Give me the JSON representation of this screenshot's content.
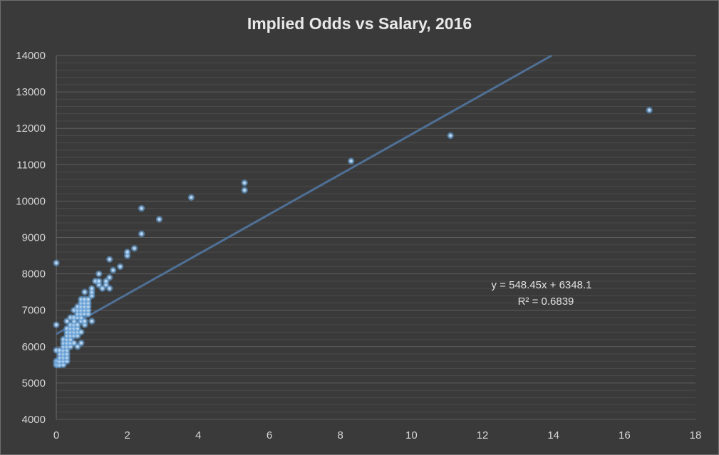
{
  "chart_data": {
    "type": "scatter",
    "title": "Implied Odds vs Salary, 2016",
    "xlabel": "",
    "ylabel": "",
    "xlim": [
      0,
      18
    ],
    "ylim": [
      4000,
      14000
    ],
    "x_ticks": [
      0,
      2,
      4,
      6,
      8,
      10,
      12,
      14,
      16,
      18
    ],
    "y_ticks": [
      4000,
      5000,
      6000,
      7000,
      8000,
      9000,
      10000,
      11000,
      12000,
      13000,
      14000
    ],
    "grid": true,
    "colors": {
      "background": "#3a3a3a",
      "point": "#9dc3e6",
      "point_glow": "#5b9bd5",
      "trendline": "#4f6f94",
      "grid": "#555555",
      "text": "#d6d6d6"
    },
    "points": [
      [
        0,
        8300
      ],
      [
        0,
        6600
      ],
      [
        0,
        5900
      ],
      [
        0,
        5600
      ],
      [
        0,
        5500
      ],
      [
        0.05,
        5500
      ],
      [
        0.05,
        5600
      ],
      [
        0.1,
        5500
      ],
      [
        0.1,
        5600
      ],
      [
        0.1,
        5700
      ],
      [
        0.1,
        5800
      ],
      [
        0.1,
        5900
      ],
      [
        0.2,
        5500
      ],
      [
        0.2,
        5600
      ],
      [
        0.2,
        5700
      ],
      [
        0.2,
        5800
      ],
      [
        0.2,
        5900
      ],
      [
        0.2,
        6000
      ],
      [
        0.2,
        6100
      ],
      [
        0.2,
        6200
      ],
      [
        0.3,
        5600
      ],
      [
        0.3,
        5700
      ],
      [
        0.3,
        5800
      ],
      [
        0.3,
        5900
      ],
      [
        0.3,
        6000
      ],
      [
        0.3,
        6100
      ],
      [
        0.3,
        6200
      ],
      [
        0.3,
        6300
      ],
      [
        0.3,
        6400
      ],
      [
        0.3,
        6500
      ],
      [
        0.3,
        6700
      ],
      [
        0.4,
        6000
      ],
      [
        0.4,
        6100
      ],
      [
        0.4,
        6200
      ],
      [
        0.4,
        6300
      ],
      [
        0.4,
        6400
      ],
      [
        0.4,
        6500
      ],
      [
        0.4,
        6600
      ],
      [
        0.4,
        6800
      ],
      [
        0.5,
        6100
      ],
      [
        0.5,
        6300
      ],
      [
        0.5,
        6400
      ],
      [
        0.5,
        6500
      ],
      [
        0.5,
        6600
      ],
      [
        0.5,
        6700
      ],
      [
        0.5,
        6800
      ],
      [
        0.5,
        7000
      ],
      [
        0.6,
        6000
      ],
      [
        0.6,
        6300
      ],
      [
        0.6,
        6400
      ],
      [
        0.6,
        6500
      ],
      [
        0.6,
        6600
      ],
      [
        0.6,
        6800
      ],
      [
        0.6,
        6900
      ],
      [
        0.6,
        7000
      ],
      [
        0.6,
        7100
      ],
      [
        0.7,
        6100
      ],
      [
        0.7,
        6400
      ],
      [
        0.7,
        6700
      ],
      [
        0.7,
        6800
      ],
      [
        0.7,
        6900
      ],
      [
        0.7,
        7000
      ],
      [
        0.7,
        7100
      ],
      [
        0.7,
        7200
      ],
      [
        0.7,
        7300
      ],
      [
        0.8,
        6600
      ],
      [
        0.8,
        6700
      ],
      [
        0.8,
        6900
      ],
      [
        0.8,
        7000
      ],
      [
        0.8,
        7100
      ],
      [
        0.8,
        7200
      ],
      [
        0.8,
        7300
      ],
      [
        0.8,
        7500
      ],
      [
        0.9,
        6900
      ],
      [
        0.9,
        7000
      ],
      [
        0.9,
        7100
      ],
      [
        0.9,
        7200
      ],
      [
        0.9,
        7300
      ],
      [
        1.0,
        6700
      ],
      [
        1.0,
        7400
      ],
      [
        1.0,
        7500
      ],
      [
        1.0,
        7600
      ],
      [
        1.1,
        7800
      ],
      [
        1.2,
        7700
      ],
      [
        1.2,
        7800
      ],
      [
        1.2,
        8000
      ],
      [
        1.3,
        7600
      ],
      [
        1.4,
        7700
      ],
      [
        1.4,
        7800
      ],
      [
        1.5,
        7600
      ],
      [
        1.5,
        7900
      ],
      [
        1.5,
        8400
      ],
      [
        1.6,
        8100
      ],
      [
        1.8,
        8200
      ],
      [
        2.0,
        8500
      ],
      [
        2.0,
        8600
      ],
      [
        2.2,
        8700
      ],
      [
        2.4,
        9100
      ],
      [
        2.4,
        9800
      ],
      [
        2.9,
        9500
      ],
      [
        3.8,
        10100
      ],
      [
        5.3,
        10300
      ],
      [
        5.3,
        10500
      ],
      [
        8.3,
        11100
      ],
      [
        11.1,
        11800
      ],
      [
        16.7,
        12500
      ]
    ],
    "trendline": {
      "type": "linear",
      "slope": 548.45,
      "intercept": 6348.1,
      "equation": "y = 548.45x + 6348.1",
      "r_squared": "R² = 0.6839"
    }
  }
}
